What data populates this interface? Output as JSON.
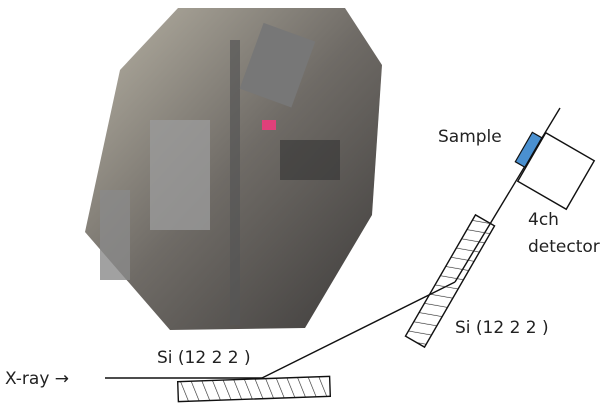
{
  "labels": {
    "sample": "Sample",
    "detector_line1": "4ch",
    "detector_line2": "detector",
    "crystal_upper": "Si (12 2 2 )",
    "crystal_lower": "Si (12 2 2 )",
    "xray": "X-ray →"
  }
}
